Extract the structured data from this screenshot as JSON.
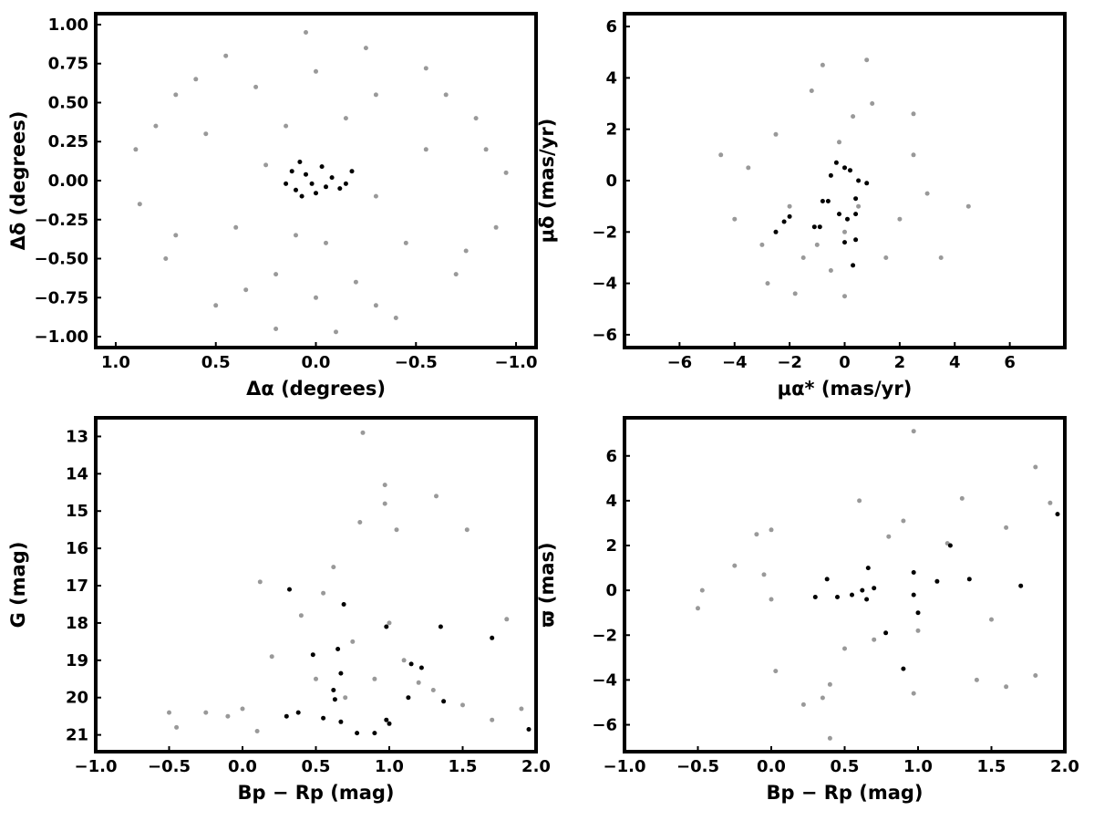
{
  "colors": {
    "field": "#999999",
    "member": "#000000",
    "axis": "#000000",
    "background": "#ffffff"
  },
  "chart_data": [
    {
      "id": "sky",
      "type": "scatter",
      "xlabel": "Δα (degrees)",
      "ylabel": "Δδ (degrees)",
      "xlim": [
        1.1,
        -1.1
      ],
      "ylim": [
        -1.07,
        1.07
      ],
      "xticks": [
        1.0,
        0.5,
        0.0,
        -0.5,
        -1.0
      ],
      "xtick_labels": [
        "1.0",
        "0.5",
        "0.0",
        "−0.5",
        "−1.0"
      ],
      "yticks": [
        -1.0,
        -0.75,
        -0.5,
        -0.25,
        0.0,
        0.25,
        0.5,
        0.75,
        1.0
      ],
      "ytick_labels": [
        "−1.00",
        "−0.75",
        "−0.50",
        "−0.25",
        "0.00",
        "0.25",
        "0.50",
        "0.75",
        "1.00"
      ],
      "grid": false,
      "series": [
        {
          "color": "#999999",
          "size": 2.5,
          "points": [
            [
              0.05,
              0.95
            ],
            [
              -0.25,
              0.85
            ],
            [
              0.45,
              0.8
            ],
            [
              -0.55,
              0.72
            ],
            [
              0.7,
              0.55
            ],
            [
              -0.8,
              0.4
            ],
            [
              0.9,
              0.2
            ],
            [
              -0.95,
              0.05
            ],
            [
              0.88,
              -0.15
            ],
            [
              -0.9,
              -0.3
            ],
            [
              0.75,
              -0.5
            ],
            [
              -0.7,
              -0.6
            ],
            [
              0.5,
              -0.8
            ],
            [
              -0.4,
              -0.88
            ],
            [
              0.2,
              -0.95
            ],
            [
              -0.1,
              -0.97
            ],
            [
              0.3,
              0.6
            ],
            [
              -0.3,
              0.55
            ],
            [
              0.55,
              0.3
            ],
            [
              -0.55,
              0.2
            ],
            [
              0.4,
              -0.3
            ],
            [
              -0.45,
              -0.4
            ],
            [
              0.2,
              -0.6
            ],
            [
              -0.2,
              -0.65
            ],
            [
              0.15,
              0.35
            ],
            [
              -0.15,
              0.4
            ],
            [
              0.25,
              0.1
            ],
            [
              -0.3,
              -0.1
            ],
            [
              0.1,
              -0.35
            ],
            [
              -0.05,
              -0.4
            ],
            [
              0.6,
              0.65
            ],
            [
              -0.65,
              0.55
            ],
            [
              0.8,
              0.35
            ],
            [
              -0.85,
              0.2
            ],
            [
              0.7,
              -0.35
            ],
            [
              -0.75,
              -0.45
            ],
            [
              0.35,
              -0.7
            ],
            [
              -0.3,
              -0.8
            ],
            [
              0.0,
              0.7
            ],
            [
              0.0,
              -0.75
            ]
          ]
        },
        {
          "color": "#000000",
          "size": 2.5,
          "points": [
            [
              0.08,
              0.12
            ],
            [
              0.05,
              0.04
            ],
            [
              0.02,
              -0.02
            ],
            [
              -0.03,
              0.09
            ],
            [
              0.1,
              -0.06
            ],
            [
              -0.08,
              0.02
            ],
            [
              0.12,
              0.06
            ],
            [
              -0.12,
              -0.05
            ],
            [
              0.0,
              -0.08
            ],
            [
              -0.18,
              0.06
            ],
            [
              -0.15,
              -0.02
            ],
            [
              0.07,
              -0.1
            ],
            [
              0.15,
              -0.02
            ],
            [
              -0.05,
              -0.04
            ]
          ]
        }
      ]
    },
    {
      "id": "pm",
      "type": "scatter",
      "xlabel": "μα* (mas/yr)",
      "ylabel": "μδ (mas/yr)",
      "xlim": [
        -8.0,
        8.0
      ],
      "ylim": [
        -6.5,
        6.5
      ],
      "xticks": [
        -6,
        -4,
        -2,
        0,
        2,
        4,
        6
      ],
      "xtick_labels": [
        "−6",
        "−4",
        "−2",
        "0",
        "2",
        "4",
        "6"
      ],
      "yticks": [
        -6,
        -4,
        -2,
        0,
        2,
        4,
        6
      ],
      "ytick_labels": [
        "−6",
        "−4",
        "−2",
        "0",
        "2",
        "4",
        "6"
      ],
      "grid": false,
      "series": [
        {
          "color": "#999999",
          "size": 2.5,
          "points": [
            [
              -1.5,
              -3.0
            ],
            [
              -1.0,
              -2.5
            ],
            [
              -0.5,
              -3.5
            ],
            [
              0.0,
              -2.0
            ],
            [
              0.5,
              -1.0
            ],
            [
              0.0,
              0.5
            ],
            [
              -0.2,
              1.5
            ],
            [
              0.3,
              2.5
            ],
            [
              -2.0,
              -1.0
            ],
            [
              -3.0,
              -2.5
            ],
            [
              -4.0,
              -1.5
            ],
            [
              -3.5,
              0.5
            ],
            [
              -2.5,
              1.8
            ],
            [
              1.5,
              -3.0
            ],
            [
              2.0,
              -1.5
            ],
            [
              2.5,
              1.0
            ],
            [
              3.0,
              -0.5
            ],
            [
              1.0,
              3.0
            ],
            [
              -1.2,
              3.5
            ],
            [
              0.8,
              4.7
            ],
            [
              -0.8,
              4.5
            ],
            [
              4.5,
              -1.0
            ],
            [
              -4.5,
              1.0
            ],
            [
              3.5,
              -3.0
            ],
            [
              2.5,
              2.6
            ],
            [
              -2.8,
              -4.0
            ],
            [
              0.0,
              -4.5
            ],
            [
              -1.8,
              -4.4
            ]
          ]
        },
        {
          "color": "#000000",
          "size": 2.5,
          "points": [
            [
              -0.3,
              0.7
            ],
            [
              0.2,
              0.4
            ],
            [
              0.5,
              0.0
            ],
            [
              -0.5,
              0.2
            ],
            [
              0.8,
              -0.1
            ],
            [
              0.4,
              -0.7
            ],
            [
              -0.8,
              -0.8
            ],
            [
              -0.2,
              -1.3
            ],
            [
              0.1,
              -1.5
            ],
            [
              0.4,
              -1.3
            ],
            [
              -1.1,
              -1.8
            ],
            [
              -0.9,
              -1.8
            ],
            [
              -2.0,
              -1.4
            ],
            [
              -2.2,
              -1.6
            ],
            [
              -2.5,
              -2.0
            ],
            [
              0.0,
              -2.4
            ],
            [
              0.4,
              -2.3
            ],
            [
              0.3,
              -3.3
            ],
            [
              0.0,
              0.5
            ],
            [
              -0.6,
              -0.8
            ]
          ]
        }
      ]
    },
    {
      "id": "cmd",
      "type": "scatter",
      "xlabel": "Bp − Rp (mag)",
      "ylabel": "G (mag)",
      "xlim": [
        -1.0,
        2.0
      ],
      "ylim": [
        21.45,
        12.5
      ],
      "xticks": [
        -1.0,
        -0.5,
        0.0,
        0.5,
        1.0,
        1.5,
        2.0
      ],
      "xtick_labels": [
        "−1.0",
        "−0.5",
        "0.0",
        "0.5",
        "1.0",
        "1.5",
        "2.0"
      ],
      "yticks": [
        13,
        14,
        15,
        16,
        17,
        18,
        19,
        20,
        21
      ],
      "ytick_labels": [
        "13",
        "14",
        "15",
        "16",
        "17",
        "18",
        "19",
        "20",
        "21"
      ],
      "grid": false,
      "series": [
        {
          "color": "#999999",
          "size": 2.5,
          "points": [
            [
              -0.45,
              20.8
            ],
            [
              -0.5,
              20.4
            ],
            [
              -0.25,
              20.4
            ],
            [
              -0.1,
              20.5
            ],
            [
              0.0,
              20.3
            ],
            [
              0.1,
              20.9
            ],
            [
              0.2,
              18.9
            ],
            [
              0.4,
              17.8
            ],
            [
              0.55,
              17.2
            ],
            [
              0.62,
              16.5
            ],
            [
              0.8,
              15.3
            ],
            [
              0.97,
              14.3
            ],
            [
              0.97,
              14.8
            ],
            [
              1.05,
              15.5
            ],
            [
              1.32,
              14.6
            ],
            [
              1.53,
              15.5
            ],
            [
              1.8,
              17.9
            ],
            [
              0.82,
              12.9
            ],
            [
              0.12,
              16.9
            ],
            [
              0.7,
              20.0
            ],
            [
              0.9,
              19.5
            ],
            [
              1.1,
              19.0
            ],
            [
              1.3,
              19.8
            ],
            [
              1.5,
              20.2
            ],
            [
              1.7,
              20.6
            ],
            [
              1.9,
              20.3
            ],
            [
              0.5,
              19.5
            ],
            [
              0.75,
              18.5
            ],
            [
              1.0,
              18.0
            ],
            [
              1.2,
              19.6
            ]
          ]
        },
        {
          "color": "#000000",
          "size": 2.5,
          "points": [
            [
              0.3,
              20.5
            ],
            [
              0.38,
              20.4
            ],
            [
              0.55,
              20.55
            ],
            [
              0.67,
              20.65
            ],
            [
              0.78,
              20.95
            ],
            [
              0.9,
              20.95
            ],
            [
              0.98,
              20.6
            ],
            [
              1.0,
              20.7
            ],
            [
              1.95,
              20.85
            ],
            [
              0.63,
              20.05
            ],
            [
              0.62,
              19.8
            ],
            [
              1.13,
              20.0
            ],
            [
              1.37,
              20.1
            ],
            [
              0.67,
              19.35
            ],
            [
              0.48,
              18.85
            ],
            [
              0.65,
              18.7
            ],
            [
              1.15,
              19.1
            ],
            [
              1.22,
              19.2
            ],
            [
              0.98,
              18.1
            ],
            [
              1.35,
              18.1
            ],
            [
              1.7,
              18.4
            ],
            [
              0.69,
              17.5
            ],
            [
              0.32,
              17.1
            ]
          ]
        }
      ]
    },
    {
      "id": "parallax",
      "type": "scatter",
      "xlabel": "Bp − Rp (mag)",
      "ylabel": "ϖ (mas)",
      "xlim": [
        -1.0,
        2.0
      ],
      "ylim": [
        -7.2,
        7.7
      ],
      "xticks": [
        -1.0,
        -0.5,
        0.0,
        0.5,
        1.0,
        1.5,
        2.0
      ],
      "xtick_labels": [
        "−1.0",
        "−0.5",
        "0.0",
        "0.5",
        "1.0",
        "1.5",
        "2.0"
      ],
      "yticks": [
        -6,
        -4,
        -2,
        0,
        2,
        4,
        6
      ],
      "ytick_labels": [
        "−6",
        "−4",
        "−2",
        "0",
        "2",
        "4",
        "6"
      ],
      "grid": false,
      "series": [
        {
          "color": "#999999",
          "size": 2.5,
          "points": [
            [
              -0.5,
              -0.8
            ],
            [
              -0.47,
              0.0
            ],
            [
              -0.25,
              1.1
            ],
            [
              -0.1,
              2.5
            ],
            [
              0.0,
              2.7
            ],
            [
              -0.05,
              0.7
            ],
            [
              0.0,
              -0.4
            ],
            [
              0.03,
              -3.6
            ],
            [
              0.22,
              -5.1
            ],
            [
              0.4,
              -6.6
            ],
            [
              0.4,
              -4.2
            ],
            [
              0.35,
              -4.8
            ],
            [
              0.6,
              4.0
            ],
            [
              0.97,
              7.1
            ],
            [
              1.3,
              4.1
            ],
            [
              1.6,
              2.8
            ],
            [
              1.8,
              5.5
            ],
            [
              1.8,
              -3.8
            ],
            [
              1.6,
              -4.3
            ],
            [
              1.4,
              -4.0
            ],
            [
              0.97,
              -4.6
            ],
            [
              0.9,
              3.1
            ],
            [
              1.2,
              2.1
            ],
            [
              0.8,
              2.4
            ],
            [
              1.9,
              3.9
            ],
            [
              1.5,
              -1.3
            ],
            [
              1.0,
              -1.8
            ],
            [
              0.7,
              -2.2
            ],
            [
              0.5,
              -2.6
            ]
          ]
        },
        {
          "color": "#000000",
          "size": 2.5,
          "points": [
            [
              0.38,
              0.5
            ],
            [
              0.3,
              -0.3
            ],
            [
              0.45,
              -0.3
            ],
            [
              0.55,
              -0.2
            ],
            [
              0.62,
              0.0
            ],
            [
              0.65,
              -0.4
            ],
            [
              0.66,
              1.0
            ],
            [
              0.7,
              0.1
            ],
            [
              0.78,
              -1.9
            ],
            [
              0.9,
              -3.5
            ],
            [
              0.97,
              0.8
            ],
            [
              0.97,
              -0.2
            ],
            [
              1.0,
              -1.0
            ],
            [
              1.13,
              0.4
            ],
            [
              1.22,
              2.0
            ],
            [
              1.35,
              0.5
            ],
            [
              1.7,
              0.2
            ],
            [
              1.95,
              3.4
            ]
          ]
        }
      ]
    }
  ]
}
